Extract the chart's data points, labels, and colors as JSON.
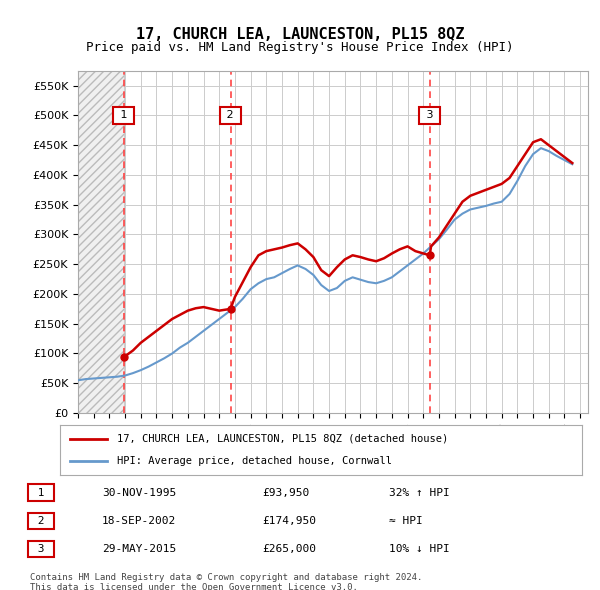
{
  "title": "17, CHURCH LEA, LAUNCESTON, PL15 8QZ",
  "subtitle": "Price paid vs. HM Land Registry's House Price Index (HPI)",
  "legend_line1": "17, CHURCH LEA, LAUNCESTON, PL15 8QZ (detached house)",
  "legend_line2": "HPI: Average price, detached house, Cornwall",
  "footnote1": "Contains HM Land Registry data © Crown copyright and database right 2024.",
  "footnote2": "This data is licensed under the Open Government Licence v3.0.",
  "transactions": [
    {
      "num": 1,
      "date": "30-NOV-1995",
      "price": 93950,
      "note": "32% ↑ HPI"
    },
    {
      "num": 2,
      "date": "18-SEP-2002",
      "price": 174950,
      "note": "≈ HPI"
    },
    {
      "num": 3,
      "date": "29-MAY-2015",
      "price": 265000,
      "note": "10% ↓ HPI"
    }
  ],
  "transaction_years": [
    1995.92,
    2002.72,
    2015.41
  ],
  "ylim": [
    0,
    575000
  ],
  "yticks": [
    0,
    50000,
    100000,
    150000,
    200000,
    250000,
    300000,
    350000,
    400000,
    450000,
    500000,
    550000
  ],
  "xlim": [
    1993.0,
    2025.5
  ],
  "property_color": "#cc0000",
  "hpi_color": "#6699cc",
  "vline_color": "#ff4444",
  "hatch_color": "#cccccc",
  "background_color": "#ffffff",
  "grid_color": "#cccccc",
  "property_line_data_x": [
    1995.92,
    1996.5,
    1997.0,
    1997.5,
    1998.0,
    1998.5,
    1999.0,
    1999.5,
    2000.0,
    2000.5,
    2001.0,
    2001.5,
    2002.0,
    2002.72,
    2003.0,
    2003.5,
    2004.0,
    2004.5,
    2005.0,
    2005.5,
    2006.0,
    2006.5,
    2007.0,
    2007.5,
    2008.0,
    2008.5,
    2009.0,
    2009.5,
    2010.0,
    2010.5,
    2011.0,
    2011.5,
    2012.0,
    2012.5,
    2013.0,
    2013.5,
    2014.0,
    2014.5,
    2015.41,
    2015.5,
    2016.0,
    2016.5,
    2017.0,
    2017.5,
    2018.0,
    2018.5,
    2019.0,
    2019.5,
    2020.0,
    2020.5,
    2021.0,
    2021.5,
    2022.0,
    2022.5,
    2023.0,
    2023.5,
    2024.0,
    2024.5
  ],
  "property_line_data_y": [
    93950,
    105000,
    118000,
    128000,
    138000,
    148000,
    158000,
    165000,
    172000,
    176000,
    178000,
    175000,
    172000,
    174950,
    195000,
    220000,
    245000,
    265000,
    272000,
    275000,
    278000,
    282000,
    285000,
    275000,
    262000,
    240000,
    230000,
    245000,
    258000,
    265000,
    262000,
    258000,
    255000,
    260000,
    268000,
    275000,
    280000,
    272000,
    265000,
    280000,
    295000,
    315000,
    335000,
    355000,
    365000,
    370000,
    375000,
    380000,
    385000,
    395000,
    415000,
    435000,
    455000,
    460000,
    450000,
    440000,
    430000,
    420000
  ],
  "hpi_line_data_x": [
    1993.0,
    1993.5,
    1994.0,
    1994.5,
    1995.0,
    1995.5,
    1996.0,
    1996.5,
    1997.0,
    1997.5,
    1998.0,
    1998.5,
    1999.0,
    1999.5,
    2000.0,
    2000.5,
    2001.0,
    2001.5,
    2002.0,
    2002.5,
    2003.0,
    2003.5,
    2004.0,
    2004.5,
    2005.0,
    2005.5,
    2006.0,
    2006.5,
    2007.0,
    2007.5,
    2008.0,
    2008.5,
    2009.0,
    2009.5,
    2010.0,
    2010.5,
    2011.0,
    2011.5,
    2012.0,
    2012.5,
    2013.0,
    2013.5,
    2014.0,
    2014.5,
    2015.0,
    2015.5,
    2016.0,
    2016.5,
    2017.0,
    2017.5,
    2018.0,
    2018.5,
    2019.0,
    2019.5,
    2020.0,
    2020.5,
    2021.0,
    2021.5,
    2022.0,
    2022.5,
    2023.0,
    2023.5,
    2024.0,
    2024.5
  ],
  "hpi_line_data_y": [
    55000,
    57000,
    58000,
    59000,
    60000,
    61000,
    63000,
    67000,
    72000,
    78000,
    85000,
    92000,
    100000,
    110000,
    118000,
    128000,
    138000,
    148000,
    158000,
    168000,
    178000,
    192000,
    208000,
    218000,
    225000,
    228000,
    235000,
    242000,
    248000,
    242000,
    232000,
    215000,
    205000,
    210000,
    222000,
    228000,
    224000,
    220000,
    218000,
    222000,
    228000,
    238000,
    248000,
    258000,
    268000,
    280000,
    292000,
    308000,
    325000,
    335000,
    342000,
    345000,
    348000,
    352000,
    355000,
    368000,
    390000,
    415000,
    435000,
    445000,
    440000,
    432000,
    425000,
    418000
  ]
}
